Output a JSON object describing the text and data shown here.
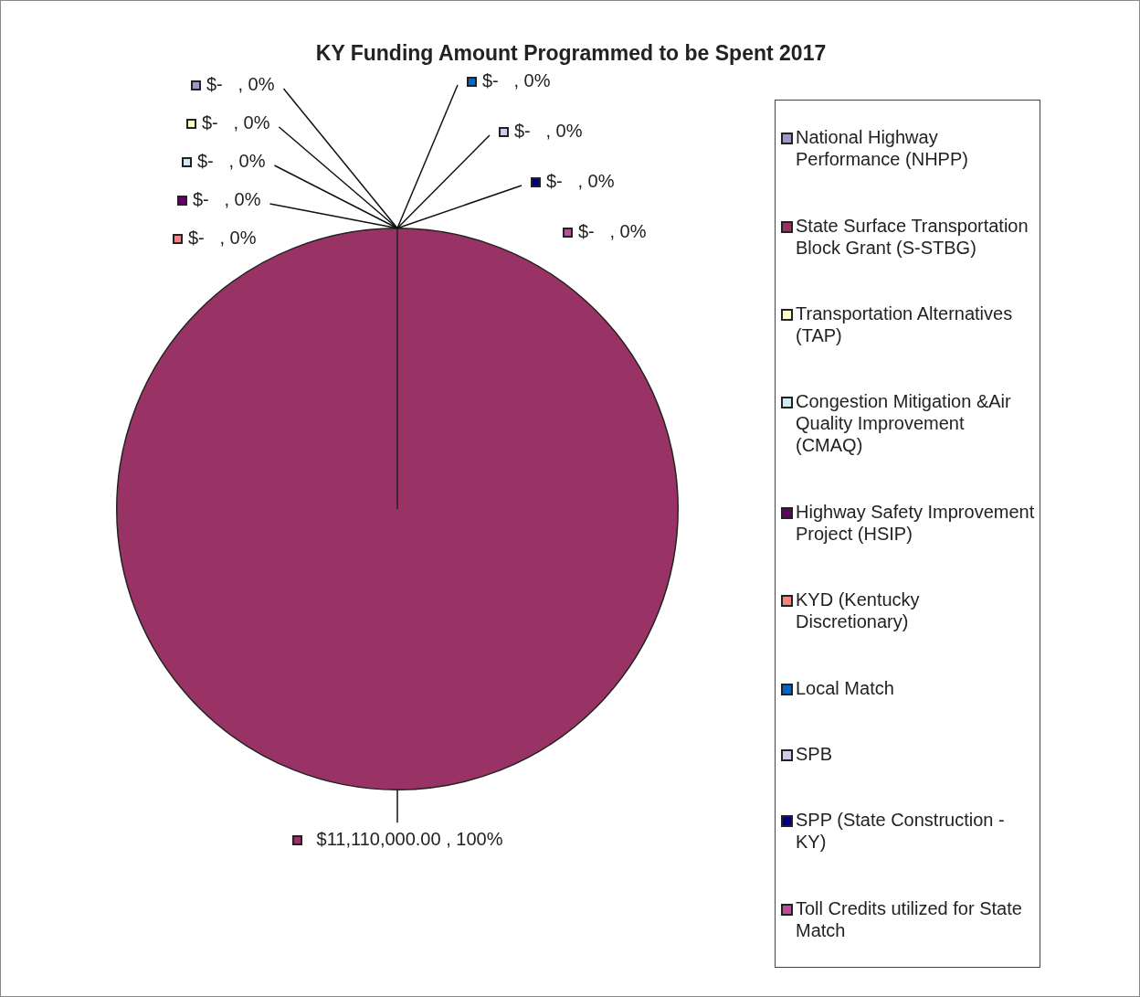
{
  "chart_data": {
    "type": "pie",
    "title": "KY Funding Amount Programmed to be Spent 2017",
    "categories": [
      "National Highway Performance (NHPP)",
      "State Surface Transportation Block Grant (S-STBG)",
      "Transportation Alternatives (TAP)",
      "Congestion Mitigation &Air Quality Improvement (CMAQ)",
      "Highway Safety Improvement Project (HSIP)",
      "KYD (Kentucky Discretionary)",
      "Local Match",
      "SPB",
      "SPP (State Construction - KY)",
      "Toll Credits utilized for State Match"
    ],
    "values": [
      0,
      11110000,
      0,
      0,
      0,
      0,
      0,
      0,
      0,
      0
    ],
    "colors": [
      "#9999cc",
      "#993366",
      "#ffffcc",
      "#ccecf4",
      "#660066",
      "#ff8080",
      "#0066cc",
      "#ccccee",
      "#000080",
      "#c04ca0"
    ],
    "value_labels": [
      "$-   , 0%",
      "$11,110,000.00 , 100%",
      "$-   , 0%",
      "$-   , 0%",
      "$-   , 0%",
      "$-   , 0%",
      "$-   , 0%",
      "$-   , 0%",
      "$-   , 0%",
      "$-   , 0%"
    ],
    "legend": "right"
  }
}
